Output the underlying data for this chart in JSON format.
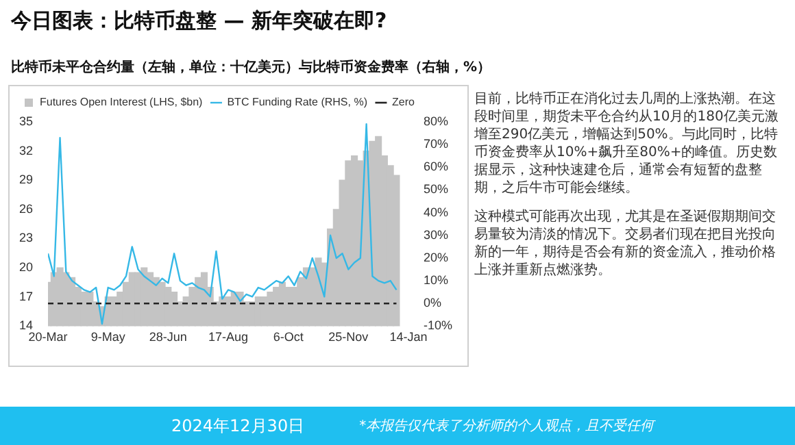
{
  "chart_data": {
    "type": "bar",
    "title": "今日图表：比特币盘整 — 新年突破在即?",
    "subtitle": "比特币未平仓合约量（左轴，单位：十亿美元）与比特币资金费率（右轴，%）",
    "x": [
      "2024-03-20",
      "2024-03-25",
      "2024-03-30",
      "2024-04-04",
      "2024-04-09",
      "2024-04-14",
      "2024-04-19",
      "2024-04-24",
      "2024-04-29",
      "2024-05-04",
      "2024-05-09",
      "2024-05-14",
      "2024-05-19",
      "2024-05-24",
      "2024-05-29",
      "2024-06-03",
      "2024-06-08",
      "2024-06-13",
      "2024-06-18",
      "2024-06-23",
      "2024-06-28",
      "2024-07-03",
      "2024-07-08",
      "2024-07-13",
      "2024-07-18",
      "2024-07-23",
      "2024-07-28",
      "2024-08-02",
      "2024-08-07",
      "2024-08-12",
      "2024-08-17",
      "2024-08-22",
      "2024-08-27",
      "2024-09-01",
      "2024-09-06",
      "2024-09-11",
      "2024-09-16",
      "2024-09-21",
      "2024-09-26",
      "2024-10-01",
      "2024-10-06",
      "2024-10-11",
      "2024-10-16",
      "2024-10-21",
      "2024-10-26",
      "2024-10-31",
      "2024-11-05",
      "2024-11-10",
      "2024-11-15",
      "2024-11-20",
      "2024-11-25",
      "2024-11-30",
      "2024-12-05",
      "2024-12-10",
      "2024-12-15",
      "2024-12-20",
      "2024-12-25",
      "2024-12-30",
      "2025-01-04"
    ],
    "series": [
      {
        "name": "Futures Open Interest (LHS, $bn)",
        "color": "#c4c4c4",
        "values": [
          18.5,
          19.5,
          20,
          19.5,
          19,
          18,
          17.5,
          17.5,
          16.5,
          16,
          17,
          17,
          17.5,
          18.5,
          19.5,
          19.5,
          20,
          19.5,
          19,
          18.5,
          18,
          17.5,
          16.5,
          17,
          18,
          19,
          19.5,
          18,
          16.5,
          17,
          17,
          17.5,
          17.5,
          16.5,
          16.5,
          17,
          17,
          17.5,
          18,
          18.5,
          18,
          18,
          19,
          20,
          20,
          21,
          20.5,
          24,
          26,
          29,
          31,
          31.5,
          31,
          32,
          33,
          33.5,
          31.5,
          30.5,
          29.5
        ]
      },
      {
        "name": "BTC Funding Rate (RHS, %)",
        "type": "line",
        "axis": "y2",
        "color": "#35b8e6",
        "values": [
          22,
          12,
          73,
          14,
          10,
          8,
          6,
          5,
          7,
          -9,
          7,
          6,
          8,
          12,
          25,
          15,
          12,
          10,
          8,
          11,
          9,
          22,
          10,
          8,
          9,
          7,
          6,
          3,
          23,
          2,
          6,
          5,
          1,
          4,
          3,
          7,
          6,
          8,
          10,
          9,
          12,
          8,
          14,
          11,
          20,
          12,
          3,
          30,
          20,
          22,
          15,
          18,
          20,
          79,
          12,
          10,
          9,
          10,
          6
        ]
      }
    ],
    "xlim": [
      "2024-03-20",
      "2025-01-14"
    ],
    "xticks": [
      {
        "value": "2024-03-20",
        "label": "20-Mar"
      },
      {
        "value": "2024-05-09",
        "label": "9-May"
      },
      {
        "value": "2024-06-28",
        "label": "28-Jun"
      },
      {
        "value": "2024-08-17",
        "label": "17-Aug"
      },
      {
        "value": "2024-10-06",
        "label": "6-Oct"
      },
      {
        "value": "2024-11-25",
        "label": "25-Nov"
      },
      {
        "value": "2025-01-14",
        "label": "14-Jan"
      }
    ],
    "ylim": [
      14,
      35
    ],
    "yticks": [
      14,
      17,
      20,
      23,
      26,
      29,
      32,
      35
    ],
    "y2lim": [
      -10,
      80
    ],
    "y2ticks": [
      {
        "value": -10,
        "label": "-10%"
      },
      {
        "value": 0,
        "label": "0%"
      },
      {
        "value": 10,
        "label": "10%"
      },
      {
        "value": 20,
        "label": "20%"
      },
      {
        "value": 30,
        "label": "30%"
      },
      {
        "value": 40,
        "label": "40%"
      },
      {
        "value": 50,
        "label": "50%"
      },
      {
        "value": 60,
        "label": "60%"
      },
      {
        "value": 70,
        "label": "70%"
      },
      {
        "value": 80,
        "label": "80%"
      }
    ],
    "ref_lines": [
      {
        "axis": "y2",
        "value": 0,
        "label": "Zero",
        "color": "#222222",
        "line_style": "dashed"
      }
    ],
    "legend": "top left",
    "annotations": [
      "目前，比特币正在消化过去几周的上涨热潮。在这段时间里，期货未平仓合约从10月的180亿美元激增至290亿美元，增幅达到50%。与此同时，比特币资金费率从10%+飙升至80%+的峰值。历史数据显示，这种快速建仓后，通常会有短暂的盘整期，之后牛市可能会继续。",
      "这种模式可能再次出现，尤其是在圣诞假期期间交易量较为清淡的情况下。交易者们现在把目光投向新的一年，期待是否会有新的资金流入，推动价格上涨并重新点燃涨势。",
      "2024年12月30日",
      "*本报告仅代表了分析师的个人观点，且不受任何"
    ]
  }
}
